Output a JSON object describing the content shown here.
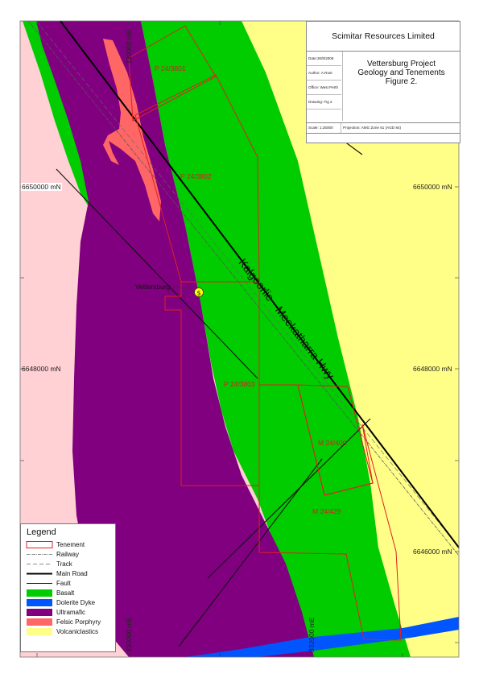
{
  "title_block": {
    "company": "Scimitar Resources Limited",
    "project_lines": [
      "Vettersburg Project",
      "Geology and Tenements",
      "Figure 2."
    ],
    "date": "Date:30/8/2006",
    "author": "Author: A.Rust",
    "office": "Office: West Perth",
    "drawing": "Drawing: Fig 2",
    "scale": "Scale: 1:25000",
    "projection": "Projection: AMG Zone 51 (AGD 84)"
  },
  "grid_labels": {
    "n_6650000_left": "6650000 mN",
    "n_6650000_right": "6650000 mN",
    "n_6648000_left": "6648000 mN",
    "n_6648000_right": "6648000 mN",
    "n_6646000_right": "6646000 mN",
    "e_330000_top": "330000 mE",
    "e_330000_bottom": "330000 mE",
    "e_332000_bottom": "332000 mE"
  },
  "tenements": {
    "p3801": "P 24/3801",
    "p3802": "P 24/3802",
    "p3803": "P 24/3803",
    "m400": "M 24/400",
    "m429": "M 24/429"
  },
  "place": "Vettersburg",
  "highway_label": "Kalgoorlie - Meekatharra Hwy",
  "legend": {
    "title": "Legend",
    "items": [
      {
        "label": "Tenement",
        "symbol": "tenement-box",
        "color": "#e02020"
      },
      {
        "label": "Railway",
        "symbol": "railway-line",
        "color": "#666666"
      },
      {
        "label": "Track",
        "symbol": "track-line",
        "color": "#666666"
      },
      {
        "label": "Main Road",
        "symbol": "main-road-line",
        "color": "#000000"
      },
      {
        "label": "Fault",
        "symbol": "fault-line",
        "color": "#1a1a1a"
      },
      {
        "label": "Basalt",
        "symbol": "fill",
        "color": "#00cc00"
      },
      {
        "label": "Dolerite Dyke",
        "symbol": "fill",
        "color": "#0055ff"
      },
      {
        "label": "Ultramafic",
        "symbol": "fill",
        "color": "#800080"
      },
      {
        "label": "Felsic Porphyry",
        "symbol": "fill",
        "color": "#ff6666"
      },
      {
        "label": "Volcaniclastics",
        "symbol": "fill",
        "color": "#ffff88"
      }
    ]
  },
  "colors": {
    "background": "#ffd0d4",
    "basalt": "#00cc00",
    "dolerite": "#0055ff",
    "ultramafic": "#800080",
    "felsic": "#ff6666",
    "volcaniclastics": "#ffff88",
    "tenement": "#e02020"
  }
}
